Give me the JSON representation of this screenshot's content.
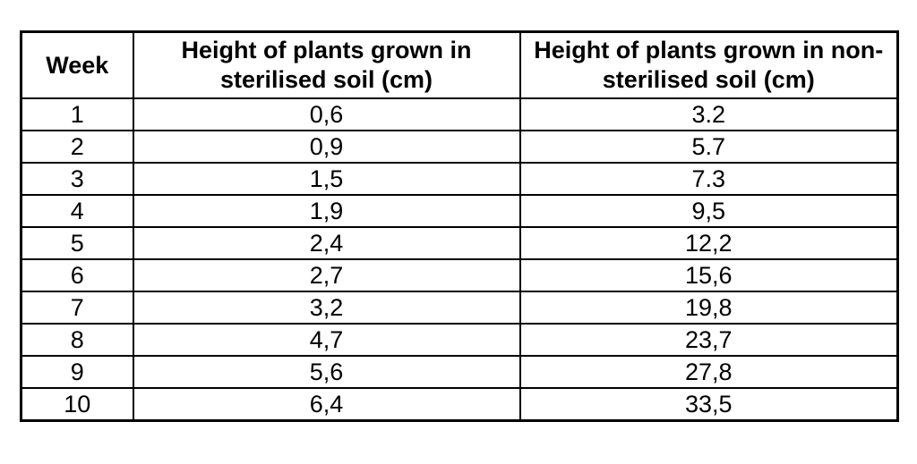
{
  "table": {
    "headers": [
      "Week",
      "Height of plants grown in sterilised soil (cm)",
      "Height of plants grown in non-sterilised soil (cm)"
    ],
    "rows": [
      [
        "1",
        "0,6",
        "3.2"
      ],
      [
        "2",
        "0,9",
        "5.7"
      ],
      [
        "3",
        "1,5",
        "7.3"
      ],
      [
        "4",
        "1,9",
        "9,5"
      ],
      [
        "5",
        "2,4",
        "12,2"
      ],
      [
        "6",
        "2,7",
        "15,6"
      ],
      [
        "7",
        "3,2",
        "19,8"
      ],
      [
        "8",
        "4,7",
        "23,7"
      ],
      [
        "9",
        "5,6",
        "27,8"
      ],
      [
        "10",
        "6,4",
        "33,5"
      ]
    ]
  }
}
